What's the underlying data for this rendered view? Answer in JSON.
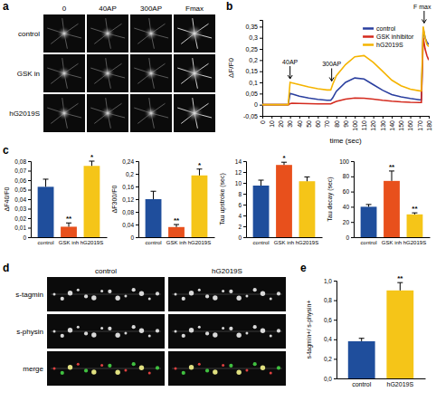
{
  "chart_data": [
    {
      "type": "image_grid",
      "panel": "a",
      "columns": [
        "0",
        "40AP",
        "300AP",
        "Fmax"
      ],
      "rows": [
        "control",
        "GSK in",
        "hG2019S"
      ]
    },
    {
      "type": "line",
      "panel": "b",
      "x": [
        0,
        10,
        20,
        28,
        30,
        32,
        40,
        50,
        60,
        70,
        74,
        76,
        80,
        90,
        100,
        110,
        120,
        130,
        140,
        150,
        160,
        170,
        172,
        174,
        176,
        178,
        180
      ],
      "xlim": [
        0,
        180
      ],
      "xticks": [
        0,
        10,
        20,
        30,
        40,
        50,
        60,
        70,
        80,
        90,
        100,
        110,
        120,
        130,
        140,
        150,
        160,
        170,
        180
      ],
      "ylim": [
        -0.05,
        0.38
      ],
      "yticks": [
        {
          "value": -0.05,
          "label": "-0,05"
        },
        0,
        {
          "value": 0.05,
          "label": "0,05"
        },
        {
          "value": 0.1,
          "label": "0,1"
        },
        {
          "value": 0.15,
          "label": "0,15"
        },
        {
          "value": 0.2,
          "label": "0,2"
        },
        {
          "value": 0.25,
          "label": "0,25"
        },
        {
          "value": 0.3,
          "label": "0,3"
        },
        {
          "value": 0.35,
          "label": "0,35"
        }
      ],
      "x_label": "time (sec)",
      "y_label": "ΔF/F0",
      "legend": "upper right",
      "series": [
        {
          "name": "control",
          "color": "#2a3f9f",
          "values": [
            0,
            0,
            0,
            0,
            0.05,
            0.048,
            0.038,
            0.03,
            0.024,
            0.02,
            0.02,
            0.03,
            0.06,
            0.1,
            0.12,
            0.115,
            0.09,
            0.065,
            0.045,
            0.035,
            0.028,
            0.022,
            0.022,
            0.34,
            0.3,
            0.28,
            0.27
          ]
        },
        {
          "name": "GSK inhibitor",
          "color": "#d42a1e",
          "values": [
            0,
            0,
            0,
            0,
            0.005,
            0.007,
            0.006,
            0.005,
            0.004,
            0.004,
            0.004,
            0.008,
            0.015,
            0.025,
            0.03,
            0.029,
            0.025,
            0.02,
            0.016,
            0.013,
            0.011,
            0.01,
            0.01,
            0.3,
            0.25,
            0.22,
            0.2
          ]
        },
        {
          "name": "hG2019S",
          "color": "#f5b400",
          "values": [
            0,
            0,
            0,
            0,
            0.1,
            0.098,
            0.09,
            0.08,
            0.072,
            0.066,
            0.066,
            0.09,
            0.13,
            0.18,
            0.215,
            0.22,
            0.19,
            0.15,
            0.11,
            0.085,
            0.07,
            0.062,
            0.062,
            0.35,
            0.3,
            0.27,
            0.26
          ]
        }
      ],
      "annotations": [
        {
          "text": "40AP",
          "x": 30
        },
        {
          "text": "300AP",
          "x": 75
        },
        {
          "text": "F max",
          "x": 175
        }
      ]
    },
    {
      "type": "bar",
      "panel": "c",
      "categories": [
        "control",
        "GSK inh",
        "hG2019S"
      ],
      "values": [
        0.053,
        0.011,
        0.075
      ],
      "errors": [
        0.008,
        0.004,
        0.005
      ],
      "colors": [
        "#1f4e9c",
        "#e8501c",
        "#f5c518"
      ],
      "significance": [
        null,
        "**",
        "*"
      ],
      "ylim": [
        0,
        0.08
      ],
      "yticks": [
        0,
        {
          "value": 0.01,
          "label": "0,01"
        },
        {
          "value": 0.02,
          "label": "0,02"
        },
        {
          "value": 0.03,
          "label": "0,03"
        },
        {
          "value": 0.04,
          "label": "0,04"
        },
        {
          "value": 0.05,
          "label": "0,05"
        },
        {
          "value": 0.06,
          "label": "0,06"
        },
        {
          "value": 0.07,
          "label": "0,07"
        },
        {
          "value": 0.08,
          "label": "0,08"
        }
      ],
      "y_label": "ΔF40/F0"
    },
    {
      "type": "bar",
      "categories": [
        "control",
        "GSK inh",
        "hG2019S"
      ],
      "values": [
        0.12,
        0.032,
        0.195
      ],
      "errors": [
        0.025,
        0.008,
        0.02
      ],
      "colors": [
        "#1f4e9c",
        "#e8501c",
        "#f5c518"
      ],
      "significance": [
        null,
        "**",
        "*"
      ],
      "ylim": [
        0,
        0.24
      ],
      "yticks": [
        0,
        {
          "value": 0.04,
          "label": "0,04"
        },
        {
          "value": 0.08,
          "label": "0,08"
        },
        {
          "value": 0.12,
          "label": "0,12"
        },
        {
          "value": 0.16,
          "label": "0,16"
        },
        {
          "value": 0.2,
          "label": "0,2"
        },
        {
          "value": 0.24,
          "label": "0,24"
        }
      ],
      "y_label": "ΔF300/F0"
    },
    {
      "type": "bar",
      "categories": [
        "control",
        "GSK inh",
        "hG2019S"
      ],
      "values": [
        9.5,
        13.3,
        10.3
      ],
      "errors": [
        1,
        0.5,
        0.8
      ],
      "colors": [
        "#1f4e9c",
        "#e8501c",
        "#f5c518"
      ],
      "significance": [
        null,
        "*",
        null
      ],
      "ylim": [
        0,
        14
      ],
      "yticks": [
        0,
        2,
        4,
        6,
        8,
        10,
        12,
        14
      ],
      "y_label": "Tau upstroke (sec)"
    },
    {
      "type": "bar",
      "categories": [
        "control",
        "GSK inh",
        "hG2019S"
      ],
      "values": [
        40,
        74,
        30
      ],
      "errors": [
        3,
        13,
        2
      ],
      "colors": [
        "#1f4e9c",
        "#e8501c",
        "#f5c518"
      ],
      "significance": [
        null,
        "**",
        "**"
      ],
      "ylim": [
        0,
        100
      ],
      "yticks": [
        0,
        20,
        40,
        60,
        80,
        100
      ],
      "y_label": "Tau decay (sec)"
    },
    {
      "type": "image_grid",
      "panel": "d",
      "columns": [
        "control",
        "hG2019S"
      ],
      "rows": [
        "s-tagmin",
        "s-physin",
        "merge"
      ]
    },
    {
      "type": "bar",
      "panel": "e",
      "categories": [
        "control",
        "hG2019S"
      ],
      "values": [
        0.38,
        0.9
      ],
      "errors": [
        0.03,
        0.08
      ],
      "colors": [
        "#1f4e9c",
        "#f5c518"
      ],
      "significance": [
        null,
        "**"
      ],
      "ylim": [
        0,
        1
      ],
      "yticks": [
        {
          "value": 0,
          "label": "0,0"
        },
        {
          "value": 0.2,
          "label": "0,2"
        },
        {
          "value": 0.4,
          "label": "0,4"
        },
        {
          "value": 0.6,
          "label": "0,6"
        },
        {
          "value": 0.8,
          "label": "0,8"
        },
        {
          "value": 1,
          "label": "1,0"
        }
      ],
      "y_label": "s-tagmin+/ s-physin+"
    }
  ]
}
